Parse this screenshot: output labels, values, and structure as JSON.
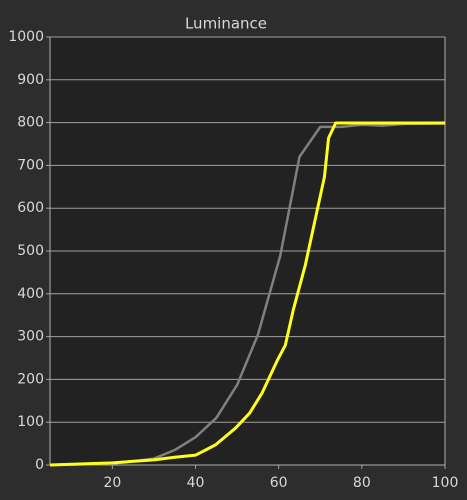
{
  "chart_data": {
    "type": "line",
    "title": "Luminance",
    "series": [
      {
        "color": "#808080",
        "x": [
          5,
          20,
          30,
          35,
          40,
          45,
          50,
          55,
          60.4,
          65,
          70,
          75,
          80,
          85,
          90,
          100
        ],
        "values": [
          0,
          3,
          15,
          35,
          65,
          110,
          187,
          304,
          490,
          720,
          790,
          790,
          795,
          793,
          797,
          798
        ]
      },
      {
        "color": "#ffff1a",
        "x": [
          5,
          20,
          30,
          35,
          40,
          44.8,
          49.6,
          53,
          56,
          59.7,
          61.6,
          63.5,
          66.4,
          71,
          72,
          73.7,
          80,
          90,
          100
        ],
        "values": [
          0,
          5,
          12,
          18,
          23,
          47,
          86,
          121,
          168,
          245,
          280,
          362,
          467,
          673,
          764,
          799,
          799,
          799,
          799
        ]
      }
    ],
    "xlim": [
      5,
      100
    ],
    "xticks": [
      20,
      40,
      60,
      80,
      100
    ],
    "ylim": [
      0,
      1000
    ],
    "yticks": [
      0,
      100,
      200,
      300,
      400,
      500,
      600,
      700,
      800,
      900,
      1000
    ],
    "grid": true
  }
}
